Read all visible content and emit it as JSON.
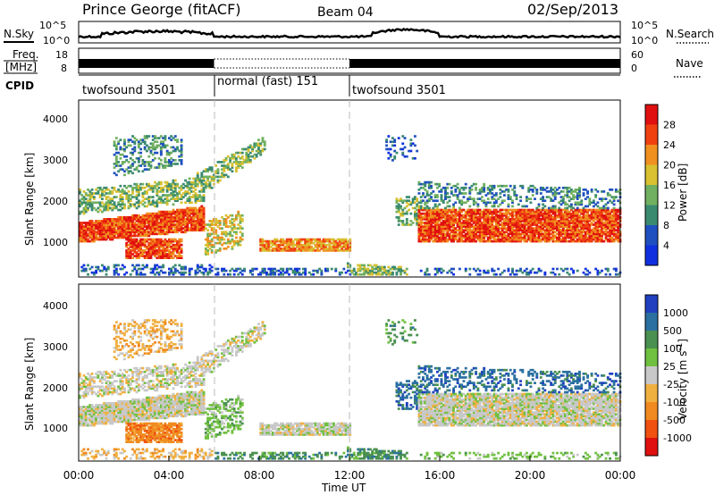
{
  "header": {
    "station": "Prince George (fitACF)",
    "beam": "Beam 04",
    "date": "02/Sep/2013"
  },
  "labels": {
    "nsky": "N.Sky",
    "nsearch": "N.Search",
    "freq_line1": "Freq.",
    "freq_line2": "[MHz]",
    "nave": "Nave",
    "cpid": "CPID",
    "pow_unit": "10^5",
    "pow_base": "10^0",
    "xaxis_title": "Time UT"
  },
  "colors": {
    "power_scale": [
      "#1030e0",
      "#2050c0",
      "#3a8a70",
      "#70b060",
      "#d8c030",
      "#f09020",
      "#f04010",
      "#e01010"
    ],
    "velocity_scale": [
      "#e01010",
      "#f05010",
      "#f08a20",
      "#f0b040",
      "#c8c8c8",
      "#70c040",
      "#4a9050",
      "#2a70a0",
      "#2040c0"
    ],
    "background": "#ffffff"
  },
  "chart_data": {
    "type": "heatmap",
    "x_ticks": [
      "00:00",
      "04:00",
      "08:00",
      "12:00",
      "16:00",
      "20:00",
      "00:00"
    ],
    "x_range_hours": [
      0,
      24
    ],
    "cpid_segments": [
      {
        "label": "twofsound 3501",
        "start_h": 0,
        "end_h": 6
      },
      {
        "label": "normal (fast) 151",
        "start_h": 6,
        "end_h": 12
      },
      {
        "label": "twofsound 3501",
        "start_h": 12,
        "end_h": 24
      }
    ],
    "freq_axis": {
      "ticks": [
        "18",
        "8"
      ],
      "ylim": [
        8,
        18
      ]
    },
    "nave_axis": {
      "ticks": [
        "60",
        "0"
      ],
      "ylim": [
        0,
        60
      ]
    },
    "power_panel": {
      "ylabel": "Slant Range [km]",
      "ylim": [
        180,
        4500
      ],
      "y_ticks": [
        "4000",
        "3000",
        "2000",
        "1000"
      ],
      "colorbar_label": "Power [dB]",
      "colorbar_ticks": [
        "28",
        "24",
        "20",
        "16",
        "12",
        "8",
        "4"
      ],
      "range": [
        0,
        32
      ]
    },
    "velocity_panel": {
      "ylabel": "Slant Range [km]",
      "ylim": [
        180,
        4500
      ],
      "y_ticks": [
        "4000",
        "3000",
        "2000",
        "1000"
      ],
      "colorbar_label": "Velocity [m s",
      "colorbar_sup": "-1",
      "colorbar_suffix": "]",
      "colorbar_ticks": [
        "1000",
        "500",
        "100",
        "25",
        "-25",
        "-100",
        "-500",
        "-1000"
      ]
    }
  }
}
